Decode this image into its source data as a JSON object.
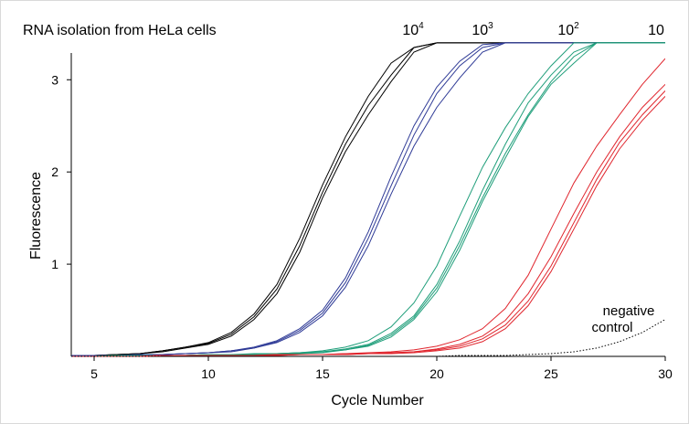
{
  "chart_data": {
    "type": "line",
    "title": "RNA isolation from HeLa cells",
    "xlabel": "Cycle Number",
    "ylabel": "Fluorescence",
    "xlim": [
      4,
      30
    ],
    "ylim": [
      0,
      3.3
    ],
    "xticks": [
      "5",
      "10",
      "15",
      "20",
      "25",
      "30"
    ],
    "yticks": [
      "1",
      "2",
      "3"
    ],
    "grid": false,
    "x": [
      4,
      5,
      6,
      7,
      8,
      9,
      10,
      11,
      12,
      13,
      14,
      15,
      16,
      17,
      18,
      19,
      20,
      21,
      22,
      23,
      24,
      25,
      26,
      27,
      28,
      29,
      30
    ],
    "dilution_labels": [
      {
        "base": "10",
        "exp": "4"
      },
      {
        "base": "10",
        "exp": "3"
      },
      {
        "base": "10",
        "exp": "2"
      },
      {
        "base": "10",
        "exp": ""
      }
    ],
    "annotation": [
      "negative",
      "control"
    ],
    "groups": [
      {
        "color": "#000000",
        "replicates": [
          [
            0.01,
            0.01,
            0.02,
            0.03,
            0.06,
            0.1,
            0.15,
            0.26,
            0.46,
            0.78,
            1.28,
            1.86,
            2.38,
            2.82,
            3.18,
            3.35,
            3.4,
            3.4,
            3.4,
            3.4,
            3.4,
            3.4,
            3.4,
            3.4,
            3.4,
            3.4,
            3.4
          ],
          [
            0.01,
            0.01,
            0.02,
            0.03,
            0.06,
            0.1,
            0.14,
            0.24,
            0.43,
            0.73,
            1.2,
            1.78,
            2.3,
            2.72,
            3.05,
            3.35,
            3.4,
            3.4,
            3.4,
            3.4,
            3.4,
            3.4,
            3.4,
            3.4,
            3.4,
            3.4,
            3.4
          ],
          [
            0.01,
            0.01,
            0.02,
            0.03,
            0.05,
            0.09,
            0.13,
            0.22,
            0.4,
            0.68,
            1.13,
            1.72,
            2.22,
            2.62,
            2.98,
            3.3,
            3.4,
            3.4,
            3.4,
            3.4,
            3.4,
            3.4,
            3.4,
            3.4,
            3.4,
            3.4,
            3.4
          ]
        ]
      },
      {
        "color": "#2e3a96",
        "replicates": [
          [
            0.01,
            0.01,
            0.01,
            0.02,
            0.02,
            0.03,
            0.04,
            0.06,
            0.1,
            0.17,
            0.3,
            0.5,
            0.85,
            1.35,
            1.95,
            2.5,
            2.92,
            3.2,
            3.38,
            3.4,
            3.4,
            3.4,
            3.4,
            3.4,
            3.4,
            3.4,
            3.4
          ],
          [
            0.01,
            0.01,
            0.01,
            0.02,
            0.02,
            0.03,
            0.04,
            0.06,
            0.09,
            0.16,
            0.28,
            0.47,
            0.8,
            1.28,
            1.85,
            2.4,
            2.85,
            3.15,
            3.35,
            3.4,
            3.4,
            3.4,
            3.4,
            3.4,
            3.4,
            3.4,
            3.4
          ],
          [
            0.01,
            0.01,
            0.01,
            0.01,
            0.02,
            0.03,
            0.04,
            0.05,
            0.09,
            0.15,
            0.26,
            0.44,
            0.75,
            1.2,
            1.76,
            2.28,
            2.7,
            3.02,
            3.3,
            3.4,
            3.4,
            3.4,
            3.4,
            3.4,
            3.4,
            3.4,
            3.4
          ]
        ]
      },
      {
        "color": "#1f9e7a",
        "replicates": [
          [
            0.0,
            0.0,
            0.01,
            0.01,
            0.01,
            0.01,
            0.02,
            0.02,
            0.03,
            0.03,
            0.04,
            0.06,
            0.1,
            0.17,
            0.32,
            0.58,
            0.98,
            1.52,
            2.05,
            2.48,
            2.85,
            3.15,
            3.4,
            3.4,
            3.4,
            3.4,
            3.4
          ],
          [
            0.0,
            0.0,
            0.01,
            0.01,
            0.01,
            0.01,
            0.02,
            0.02,
            0.02,
            0.03,
            0.04,
            0.05,
            0.08,
            0.13,
            0.25,
            0.44,
            0.78,
            1.25,
            1.8,
            2.3,
            2.75,
            3.05,
            3.3,
            3.4,
            3.4,
            3.4,
            3.4
          ],
          [
            0.0,
            0.0,
            0.01,
            0.01,
            0.01,
            0.01,
            0.02,
            0.02,
            0.02,
            0.03,
            0.04,
            0.05,
            0.07,
            0.12,
            0.23,
            0.42,
            0.74,
            1.2,
            1.72,
            2.2,
            2.62,
            2.98,
            3.25,
            3.4,
            3.4,
            3.4,
            3.4
          ],
          [
            0.0,
            0.0,
            0.01,
            0.01,
            0.01,
            0.01,
            0.02,
            0.02,
            0.02,
            0.03,
            0.03,
            0.04,
            0.07,
            0.11,
            0.21,
            0.4,
            0.7,
            1.15,
            1.68,
            2.15,
            2.6,
            2.95,
            3.18,
            3.4,
            3.4,
            3.4,
            3.4
          ]
        ]
      },
      {
        "color": "#e0262e",
        "replicates": [
          [
            0.0,
            0.0,
            0.0,
            0.0,
            0.01,
            0.01,
            0.01,
            0.01,
            0.01,
            0.02,
            0.02,
            0.02,
            0.03,
            0.04,
            0.05,
            0.07,
            0.11,
            0.18,
            0.3,
            0.52,
            0.88,
            1.38,
            1.88,
            2.28,
            2.62,
            2.95,
            3.23
          ],
          [
            0.0,
            0.0,
            0.0,
            0.0,
            0.01,
            0.01,
            0.01,
            0.01,
            0.01,
            0.02,
            0.02,
            0.02,
            0.03,
            0.03,
            0.04,
            0.05,
            0.08,
            0.13,
            0.22,
            0.39,
            0.68,
            1.08,
            1.55,
            2.0,
            2.38,
            2.7,
            2.95
          ],
          [
            0.0,
            0.0,
            0.0,
            0.0,
            0.01,
            0.01,
            0.01,
            0.01,
            0.01,
            0.01,
            0.02,
            0.02,
            0.02,
            0.03,
            0.04,
            0.05,
            0.07,
            0.11,
            0.19,
            0.34,
            0.6,
            0.98,
            1.45,
            1.92,
            2.32,
            2.62,
            2.88
          ],
          [
            0.0,
            0.0,
            0.0,
            0.0,
            0.01,
            0.01,
            0.01,
            0.01,
            0.01,
            0.01,
            0.02,
            0.02,
            0.02,
            0.03,
            0.03,
            0.04,
            0.06,
            0.09,
            0.16,
            0.3,
            0.55,
            0.92,
            1.38,
            1.85,
            2.25,
            2.56,
            2.82
          ]
        ]
      }
    ],
    "negative_control": {
      "color": "#000000",
      "style": "dotted",
      "values": [
        0.0,
        0.0,
        0.0,
        0.0,
        0.0,
        0.0,
        0.0,
        0.0,
        0.0,
        0.0,
        0.0,
        0.0,
        0.0,
        0.0,
        0.0,
        0.0,
        0.0,
        0.01,
        0.01,
        0.01,
        0.02,
        0.03,
        0.05,
        0.09,
        0.16,
        0.26,
        0.4
      ]
    }
  }
}
